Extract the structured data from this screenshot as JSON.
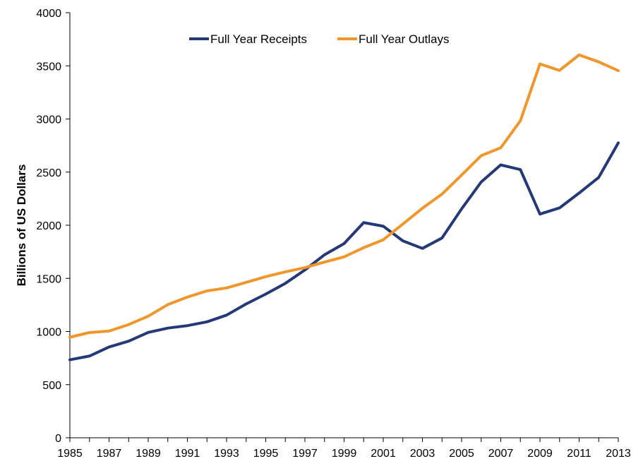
{
  "chart_data": {
    "type": "line",
    "title": "",
    "xlabel": "",
    "ylabel": "Billions of US Dollars",
    "x": [
      1985,
      1986,
      1987,
      1988,
      1989,
      1990,
      1991,
      1992,
      1993,
      1994,
      1995,
      1996,
      1997,
      1998,
      1999,
      2000,
      2001,
      2002,
      2003,
      2004,
      2005,
      2006,
      2007,
      2008,
      2009,
      2010,
      2011,
      2012,
      2013
    ],
    "xlim": [
      1985,
      2013
    ],
    "ylim": [
      0,
      4000
    ],
    "x_ticks": [
      "1985",
      "1987",
      "1989",
      "1991",
      "1993",
      "1995",
      "1997",
      "1999",
      "2001",
      "2003",
      "2005",
      "2007",
      "2009",
      "2011",
      "2013"
    ],
    "y_ticks": [
      "0",
      "500",
      "1000",
      "1500",
      "2000",
      "2500",
      "3000",
      "3500",
      "4000"
    ],
    "grid": false,
    "legend_position": "top-center",
    "series": [
      {
        "name": "Full Year Receipts",
        "color": "#243a78",
        "values": [
          734,
          769,
          854,
          909,
          991,
          1032,
          1055,
          1091,
          1154,
          1259,
          1352,
          1453,
          1579,
          1722,
          1827,
          2025,
          1991,
          1853,
          1782,
          1880,
          2154,
          2407,
          2568,
          2524,
          2105,
          2163,
          2303,
          2450,
          2775
        ]
      },
      {
        "name": "Full Year Outlays",
        "color": "#f0962a",
        "values": [
          946,
          990,
          1004,
          1065,
          1144,
          1253,
          1324,
          1382,
          1410,
          1462,
          1516,
          1561,
          1601,
          1653,
          1702,
          1789,
          1863,
          2011,
          2160,
          2293,
          2472,
          2655,
          2729,
          2983,
          3518,
          3457,
          3603,
          3537,
          3455
        ]
      }
    ]
  }
}
